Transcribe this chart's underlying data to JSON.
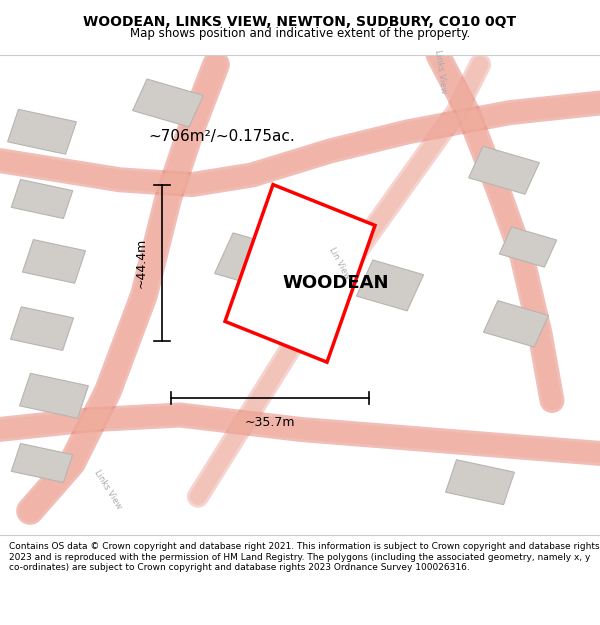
{
  "title_line1": "WOODEAN, LINKS VIEW, NEWTON, SUDBURY, CO10 0QT",
  "title_line2": "Map shows position and indicative extent of the property.",
  "footer_text": "Contains OS data © Crown copyright and database right 2021. This information is subject to Crown copyright and database rights 2023 and is reproduced with the permission of HM Land Registry. The polygons (including the associated geometry, namely x, y co-ordinates) are subject to Crown copyright and database rights 2023 Ordnance Survey 100026316.",
  "property_label": "WOODEAN",
  "area_label": "~706m²/~0.175ac.",
  "width_label": "~35.7m",
  "height_label": "~44.4m",
  "map_bg": "#f5f0ef",
  "title_bg": "#ffffff",
  "footer_bg": "#ffffff",
  "road_color_light": "#f0b0a0",
  "road_color_outline": "#e07060",
  "building_color": "#d0ccc8",
  "building_outline": "#b8b4b0",
  "plot_color": "#ff0000",
  "road_label_color": "#aaaaaa",
  "links_view_label": "Links View",
  "lin_view_label": "Lin View"
}
